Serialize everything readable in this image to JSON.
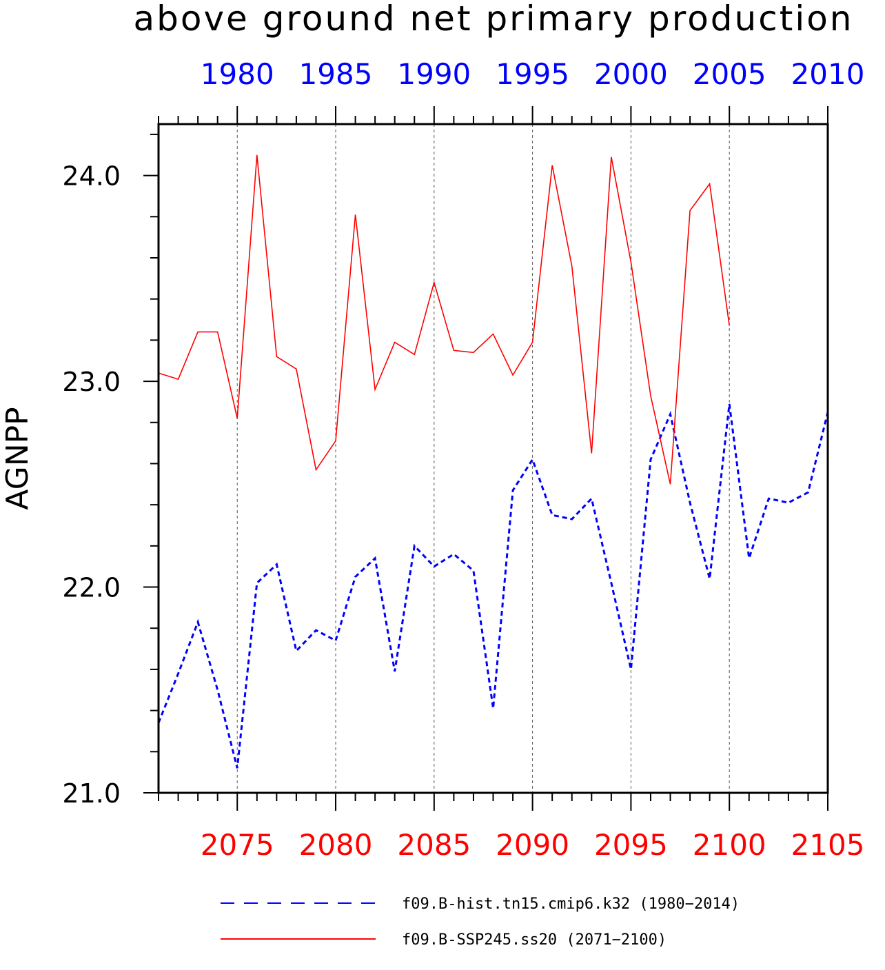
{
  "colors": {
    "hist": "#0000ff",
    "ssp": "#ff0000",
    "axis": "#000000"
  },
  "chart_data": {
    "type": "line",
    "title": "above ground net primary production",
    "ylabel": "AGNPP",
    "ylim": [
      21.0,
      24.25
    ],
    "yticks_major": [
      21.0,
      22.0,
      23.0,
      24.0
    ],
    "ytick_labels": [
      "21.0",
      "22.0",
      "23.0",
      "24.0"
    ],
    "grid": "vertical dashed lines at major x ticks",
    "legend_placement": "bottom",
    "top_axis": {
      "color": "#0000ff",
      "range": [
        1976,
        2010
      ],
      "ticks": [
        1980,
        1985,
        1990,
        1995,
        2000,
        2005,
        2010
      ],
      "tick_labels": [
        "1980",
        "1985",
        "1990",
        "1995",
        "2000",
        "2005",
        "2010"
      ]
    },
    "bottom_axis": {
      "color": "#ff0000",
      "range": [
        2071,
        2105
      ],
      "ticks": [
        2075,
        2080,
        2085,
        2090,
        2095,
        2100,
        2105
      ],
      "tick_labels": [
        "2075",
        "2080",
        "2085",
        "2090",
        "2095",
        "2100",
        "2105"
      ]
    },
    "series": [
      {
        "name": "f09.B-hist.tn15.cmip6.k32 (1980−2014)",
        "color": "#0000ff",
        "style": "dashed",
        "x": [
          2071,
          2072,
          2073,
          2074,
          2075,
          2076,
          2077,
          2078,
          2079,
          2080,
          2081,
          2082,
          2083,
          2084,
          2085,
          2086,
          2087,
          2088,
          2089,
          2090,
          2091,
          2092,
          2093,
          2094,
          2095,
          2096,
          2097,
          2098,
          2099,
          2100,
          2101,
          2102,
          2103,
          2104,
          2105
        ],
        "values": [
          21.34,
          21.58,
          21.83,
          21.5,
          21.12,
          22.02,
          22.11,
          21.69,
          21.79,
          21.74,
          22.05,
          22.14,
          21.59,
          22.2,
          22.1,
          22.16,
          22.08,
          21.41,
          22.47,
          22.62,
          22.35,
          22.33,
          22.43,
          22.02,
          21.6,
          22.62,
          22.84,
          22.41,
          22.04,
          22.89,
          22.14,
          22.43,
          22.41,
          22.46,
          22.85
        ]
      },
      {
        "name": "f09.B-SSP245.ss20 (2071−2100)",
        "color": "#ff0000",
        "style": "solid",
        "x": [
          2071,
          2072,
          2073,
          2074,
          2075,
          2076,
          2077,
          2078,
          2079,
          2080,
          2081,
          2082,
          2083,
          2084,
          2085,
          2086,
          2087,
          2088,
          2089,
          2090,
          2091,
          2092,
          2093,
          2094,
          2095,
          2096,
          2097,
          2098,
          2099,
          2100
        ],
        "values": [
          23.04,
          23.01,
          23.24,
          23.24,
          22.82,
          24.1,
          23.12,
          23.06,
          22.57,
          22.71,
          23.81,
          22.96,
          23.19,
          23.13,
          23.48,
          23.15,
          23.14,
          23.23,
          23.03,
          23.19,
          24.05,
          23.56,
          22.65,
          24.09,
          23.58,
          22.93,
          22.5,
          23.83,
          23.96,
          23.27
        ]
      }
    ]
  }
}
